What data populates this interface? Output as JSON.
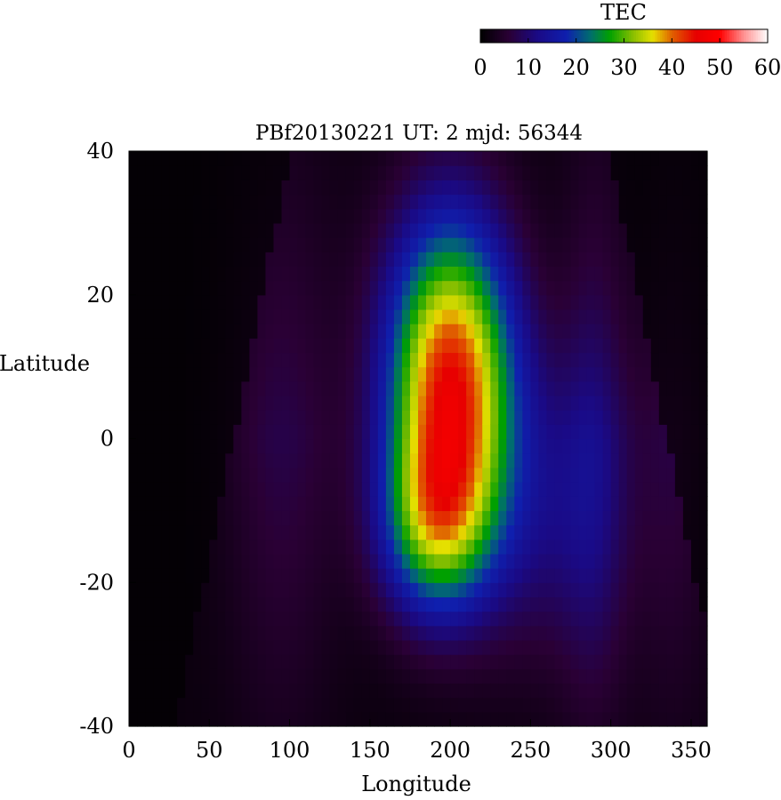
{
  "chart_data": {
    "type": "heatmap",
    "title": "PBf20130221  UT: 2  mjd: 56344",
    "xlabel": "Longitude",
    "ylabel": "Latitude",
    "xlim": [
      0,
      360
    ],
    "ylim": [
      -40,
      40
    ],
    "x_ticks": [
      "0",
      "50",
      "100",
      "150",
      "200",
      "250",
      "300",
      "350"
    ],
    "y_ticks": [
      "40",
      "20",
      "0",
      "-20",
      "-40"
    ],
    "grid": {
      "lon_step": 5,
      "lat_step": 2
    },
    "colorbar": {
      "label": "TEC",
      "range": [
        0,
        60
      ],
      "ticks": [
        "0",
        "10",
        "20",
        "30",
        "40",
        "50",
        "60"
      ],
      "placement": "top-right",
      "stops": [
        {
          "v": 0,
          "c": "#000000"
        },
        {
          "v": 6,
          "c": "#2a0035"
        },
        {
          "v": 12,
          "c": "#1a0a86"
        },
        {
          "v": 18,
          "c": "#0f1fae"
        },
        {
          "v": 23,
          "c": "#006e6e"
        },
        {
          "v": 27,
          "c": "#00a000"
        },
        {
          "v": 32,
          "c": "#8cc000"
        },
        {
          "v": 36,
          "c": "#e6e000"
        },
        {
          "v": 40,
          "c": "#e06000"
        },
        {
          "v": 45,
          "c": "#e60000"
        },
        {
          "v": 50,
          "c": "#ff0000"
        },
        {
          "v": 55,
          "c": "#ff9090"
        },
        {
          "v": 60,
          "c": "#ffffff"
        }
      ]
    },
    "field_model": {
      "description_values": "TEC field over the map: near-zero on the night side, enhanced day-side with a main peak near lon 200, lat 8 and a secondary peak near lon 190, lat -12",
      "peaks": [
        {
          "lon": 200,
          "lat": 8,
          "tec": 42,
          "lon_sigma": 28,
          "lat_sigma": 16
        },
        {
          "lon": 190,
          "lat": -12,
          "tec": 20,
          "lon_sigma": 24,
          "lat_sigma": 9
        },
        {
          "lon": 260,
          "lat": -10,
          "tec": 8,
          "lon_sigma": 35,
          "lat_sigma": 15
        }
      ],
      "background_bands": [
        {
          "lon": 95,
          "tec": 6,
          "lon_sigma": 25
        },
        {
          "lon": 340,
          "tec": 5,
          "lon_sigma": 18
        },
        {
          "lon": 290,
          "tec": 7,
          "lon_sigma": 15
        }
      ]
    }
  }
}
